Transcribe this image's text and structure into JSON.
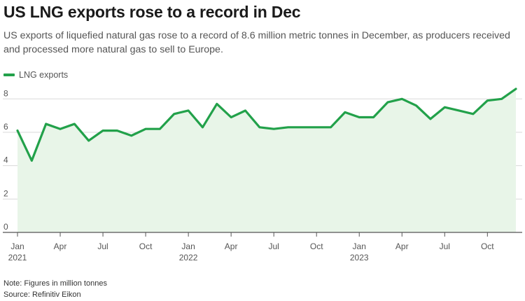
{
  "title": "US LNG exports rose to a record in Dec",
  "subtitle": "US exports of liquefied natural gas rose to a record of 8.6 million metric tonnes in December, as producers received and processed more natural gas to sell to Europe.",
  "legend": {
    "label": "LNG exports"
  },
  "notes": {
    "note": "Note: Figures in million tonnes",
    "source": "Source: Refinitiv Eikon"
  },
  "colors": {
    "line": "#22a14a",
    "fill": "#e8f5e8",
    "grid": "#d9d9d9",
    "axis": "#555555"
  },
  "chart_data": {
    "type": "area",
    "title": "US LNG exports rose to a record in Dec",
    "xlabel": "",
    "ylabel": "",
    "ylim": [
      0,
      8.6
    ],
    "yticks": [
      0,
      2,
      4,
      6,
      8
    ],
    "grid": true,
    "legend_position": "top-left",
    "x": [
      "2021-01",
      "2021-02",
      "2021-03",
      "2021-04",
      "2021-05",
      "2021-06",
      "2021-07",
      "2021-08",
      "2021-09",
      "2021-10",
      "2021-11",
      "2021-12",
      "2022-01",
      "2022-02",
      "2022-03",
      "2022-04",
      "2022-05",
      "2022-06",
      "2022-07",
      "2022-08",
      "2022-09",
      "2022-10",
      "2022-11",
      "2022-12",
      "2023-01",
      "2023-02",
      "2023-03",
      "2023-04",
      "2023-05",
      "2023-06",
      "2023-07",
      "2023-08",
      "2023-09",
      "2023-10",
      "2023-11",
      "2023-12"
    ],
    "x_tick_labels": [
      {
        "month": "Jan",
        "year": "2021"
      },
      {
        "month": "Apr",
        "year": ""
      },
      {
        "month": "Jul",
        "year": ""
      },
      {
        "month": "Oct",
        "year": ""
      },
      {
        "month": "Jan",
        "year": "2022"
      },
      {
        "month": "Apr",
        "year": ""
      },
      {
        "month": "Jul",
        "year": ""
      },
      {
        "month": "Oct",
        "year": ""
      },
      {
        "month": "Jan",
        "year": "2023"
      },
      {
        "month": "Apr",
        "year": ""
      },
      {
        "month": "Jul",
        "year": ""
      },
      {
        "month": "Oct",
        "year": ""
      }
    ],
    "series": [
      {
        "name": "LNG exports",
        "values": [
          6.1,
          4.3,
          6.5,
          6.2,
          6.5,
          5.5,
          6.1,
          6.1,
          5.8,
          6.2,
          6.2,
          7.1,
          7.3,
          6.3,
          7.7,
          6.9,
          7.3,
          6.3,
          6.2,
          6.3,
          6.3,
          6.3,
          6.3,
          7.2,
          6.9,
          6.9,
          7.8,
          8.0,
          7.6,
          6.8,
          7.5,
          7.3,
          7.1,
          7.9,
          8.0,
          8.6
        ]
      }
    ]
  }
}
